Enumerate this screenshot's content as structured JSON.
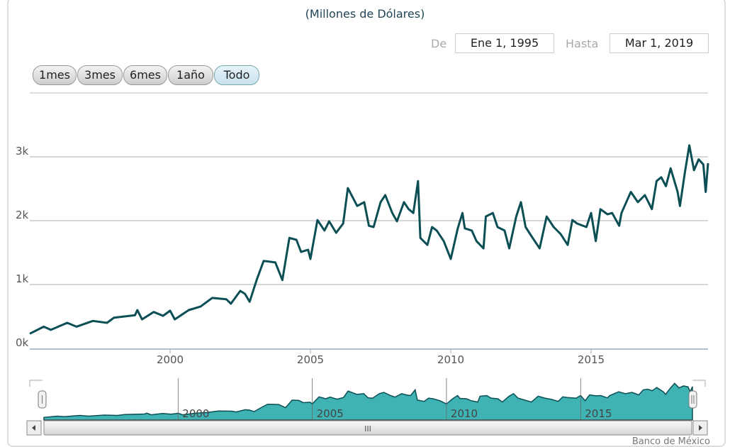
{
  "title": "(Millones de Dólares)",
  "range_selector": {
    "from_label": "De",
    "from_value": "Ene 1, 1995",
    "to_label": "Hasta",
    "to_value": "Mar 1, 2019",
    "buttons": [
      {
        "label": "1mes",
        "active": false
      },
      {
        "label": "3mes",
        "active": false
      },
      {
        "label": "6mes",
        "active": false
      },
      {
        "label": "1año",
        "active": false
      },
      {
        "label": "Todo",
        "active": true
      }
    ]
  },
  "credit": "Banco de México",
  "scrollbar_grip": "III",
  "colors": {
    "line": "#0b4f55",
    "navigator_fill": "#3fb3b3",
    "grid": "#c8c8c8"
  },
  "chart_data": {
    "type": "line",
    "xlabel": "",
    "ylabel": "",
    "ylim": [
      0,
      3000
    ],
    "y_ticks": [
      {
        "v": 0,
        "label": "0k"
      },
      {
        "v": 1000,
        "label": "1k"
      },
      {
        "v": 2000,
        "label": "2k"
      },
      {
        "v": 3000,
        "label": "3k"
      }
    ],
    "x_ticks": [
      "2000",
      "2005",
      "2010",
      "2015"
    ],
    "navigator_ticks": [
      "2000",
      "2005",
      "2010",
      "2015"
    ],
    "grid": true,
    "series": [
      {
        "points": [
          [
            "1995-01",
            230
          ],
          [
            "1995-07",
            340
          ],
          [
            "1995-10",
            290
          ],
          [
            "1996-05",
            400
          ],
          [
            "1996-09",
            340
          ],
          [
            "1997-04",
            430
          ],
          [
            "1997-10",
            400
          ],
          [
            "1998-01",
            480
          ],
          [
            "1998-10",
            520
          ],
          [
            "1998-11",
            600
          ],
          [
            "1999-01",
            455
          ],
          [
            "1999-06",
            570
          ],
          [
            "1999-10",
            510
          ],
          [
            "2000-01",
            590
          ],
          [
            "2000-03",
            455
          ],
          [
            "2000-09",
            600
          ],
          [
            "2001-02",
            655
          ],
          [
            "2001-07",
            790
          ],
          [
            "2002-01",
            770
          ],
          [
            "2002-03",
            700
          ],
          [
            "2002-07",
            900
          ],
          [
            "2002-09",
            855
          ],
          [
            "2002-11",
            730
          ],
          [
            "2003-02",
            1070
          ],
          [
            "2003-05",
            1370
          ],
          [
            "2003-10",
            1345
          ],
          [
            "2004-01",
            1070
          ],
          [
            "2004-04",
            1730
          ],
          [
            "2004-07",
            1700
          ],
          [
            "2004-09",
            1510
          ],
          [
            "2004-12",
            1545
          ],
          [
            "2005-01",
            1400
          ],
          [
            "2005-04",
            2010
          ],
          [
            "2005-07",
            1845
          ],
          [
            "2005-09",
            1990
          ],
          [
            "2005-12",
            1810
          ],
          [
            "2006-03",
            1955
          ],
          [
            "2006-05",
            2510
          ],
          [
            "2006-09",
            2230
          ],
          [
            "2006-12",
            2290
          ],
          [
            "2007-02",
            1920
          ],
          [
            "2007-04",
            1900
          ],
          [
            "2007-07",
            2290
          ],
          [
            "2007-09",
            2400
          ],
          [
            "2007-12",
            2120
          ],
          [
            "2008-02",
            1990
          ],
          [
            "2008-05",
            2290
          ],
          [
            "2008-07",
            2180
          ],
          [
            "2008-09",
            2120
          ],
          [
            "2008-11",
            2620
          ],
          [
            "2008-12",
            1730
          ],
          [
            "2009-03",
            1620
          ],
          [
            "2009-05",
            1900
          ],
          [
            "2009-07",
            1845
          ],
          [
            "2009-10",
            1680
          ],
          [
            "2010-01",
            1400
          ],
          [
            "2010-04",
            1880
          ],
          [
            "2010-06",
            2120
          ],
          [
            "2010-07",
            1880
          ],
          [
            "2010-10",
            1845
          ],
          [
            "2010-12",
            1680
          ],
          [
            "2011-03",
            1565
          ],
          [
            "2011-04",
            2065
          ],
          [
            "2011-07",
            2120
          ],
          [
            "2011-09",
            1900
          ],
          [
            "2011-12",
            1845
          ],
          [
            "2012-02",
            1565
          ],
          [
            "2012-05",
            2065
          ],
          [
            "2012-07",
            2290
          ],
          [
            "2012-09",
            1900
          ],
          [
            "2012-12",
            1730
          ],
          [
            "2013-03",
            1565
          ],
          [
            "2013-06",
            2065
          ],
          [
            "2013-09",
            1900
          ],
          [
            "2013-12",
            1790
          ],
          [
            "2014-03",
            1620
          ],
          [
            "2014-05",
            2010
          ],
          [
            "2014-07",
            1955
          ],
          [
            "2014-11",
            1900
          ],
          [
            "2015-01",
            2120
          ],
          [
            "2015-03",
            1680
          ],
          [
            "2015-05",
            2180
          ],
          [
            "2015-08",
            2100
          ],
          [
            "2015-10",
            2120
          ],
          [
            "2016-01",
            1920
          ],
          [
            "2016-02",
            2120
          ],
          [
            "2016-06",
            2450
          ],
          [
            "2016-09",
            2290
          ],
          [
            "2016-12",
            2400
          ],
          [
            "2017-03",
            2180
          ],
          [
            "2017-05",
            2620
          ],
          [
            "2017-07",
            2680
          ],
          [
            "2017-09",
            2540
          ],
          [
            "2017-11",
            2820
          ],
          [
            "2018-02",
            2450
          ],
          [
            "2018-03",
            2230
          ],
          [
            "2018-05",
            2730
          ],
          [
            "2018-07",
            3180
          ],
          [
            "2018-09",
            2790
          ],
          [
            "2018-11",
            2960
          ],
          [
            "2019-01",
            2880
          ],
          [
            "2019-02",
            2450
          ],
          [
            "2019-03",
            2900
          ]
        ]
      }
    ]
  }
}
